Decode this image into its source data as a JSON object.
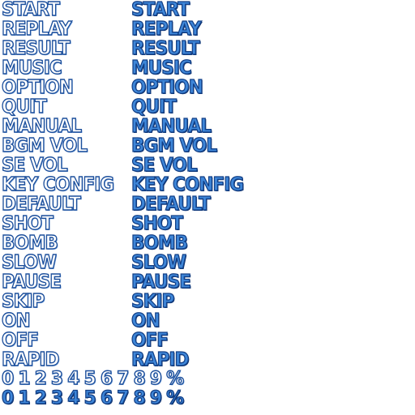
{
  "sprite_sheet": {
    "labels": [
      "START",
      "REPLAY",
      "RESULT",
      "MUSIC",
      "OPTION",
      "QUIT",
      "MANUAL",
      "BGM VOL",
      "SE VOL",
      "KEY CONFIG",
      "DEFAULT",
      "SHOT",
      "BOMB",
      "SLOW",
      "PAUSE",
      "SKIP",
      "ON",
      "OFF",
      "RAPID"
    ],
    "digits_outline": "0123456789%",
    "digits_filled": "0123456789%"
  },
  "colors": {
    "background": "#ffffff",
    "outline_stroke": "#1c4f9c",
    "filled_face": "#3e86d8",
    "filled_stroke": "#123f86"
  }
}
